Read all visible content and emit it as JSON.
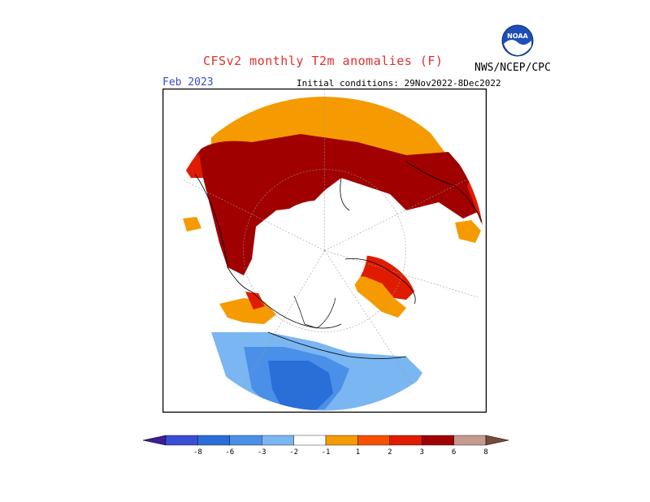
{
  "header": {
    "title": "CFSv2 monthly T2m anomalies (F)",
    "agency": "NWS/NCEP/CPC",
    "valid_month": "Feb 2023",
    "initial_conditions": "Initial conditions: 29Nov2022-8Dec2022",
    "logo_text": "NOAA"
  },
  "colors": {
    "title": "#e03030",
    "valid_month": "#3a4ad0",
    "map_frame": "#000000",
    "land_outline": "#000000",
    "grid": "#9a9a9a"
  },
  "legend": {
    "bins": [
      {
        "color": "#3c1e96"
      },
      {
        "color": "#3a4ed4"
      },
      {
        "color": "#2a6ed8"
      },
      {
        "color": "#4a90e8"
      },
      {
        "color": "#7ab6f2"
      },
      {
        "color": "#ffffff"
      },
      {
        "color": "#f59a00"
      },
      {
        "color": "#f55000"
      },
      {
        "color": "#e01c00"
      },
      {
        "color": "#a00000"
      },
      {
        "color": "#c49a8e"
      },
      {
        "color": "#7a4a3a"
      }
    ],
    "tick_labels": [
      "-8",
      "-6",
      "-3",
      "-2",
      "-1",
      "1",
      "2",
      "3",
      "6",
      "8"
    ]
  },
  "map": {
    "projection": "polar-stereographic-north",
    "regions": [
      {
        "name": "siberia-warm",
        "category": "3 to 6"
      },
      {
        "name": "arctic-siberia-orange",
        "category": "1 to 2"
      },
      {
        "name": "scandinavia-warm",
        "category": "3 to 6"
      },
      {
        "name": "greenland-warm",
        "category": "1 to 3"
      },
      {
        "name": "alaska-warm",
        "category": "1 to 3"
      },
      {
        "name": "north-america-cold",
        "category": "-6 to -1"
      }
    ]
  }
}
